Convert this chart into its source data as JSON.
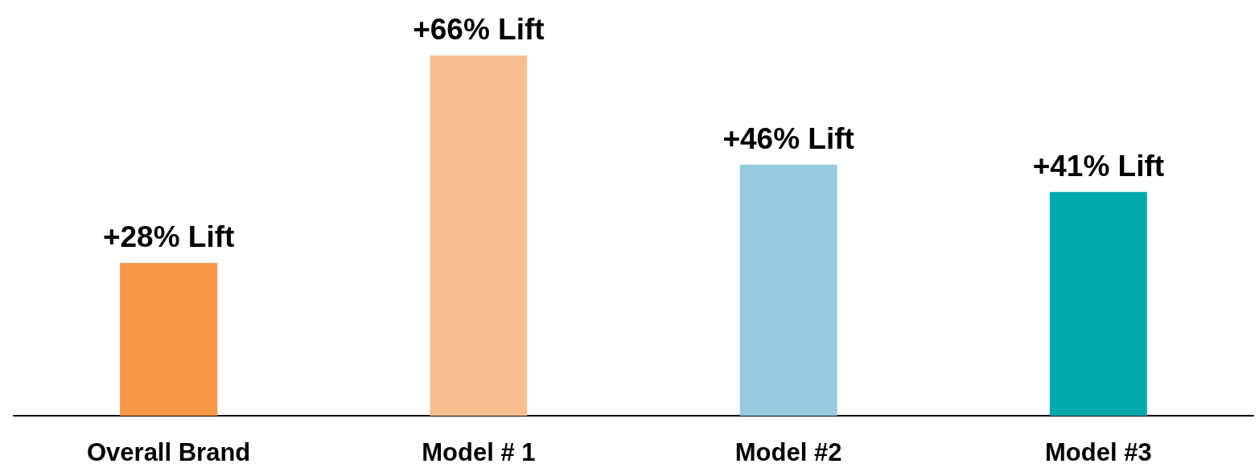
{
  "chart_data": {
    "type": "bar",
    "categories": [
      "Overall Brand",
      "Model # 1",
      "Model #2",
      "Model #3"
    ],
    "values": [
      28,
      66,
      46,
      41
    ],
    "value_labels": [
      "+28% Lift",
      "+66% Lift",
      "+46% Lift",
      "+41% Lift"
    ],
    "colors": [
      "#f79748",
      "#f9c08f",
      "#95cbdd",
      "#00a9ac"
    ]
  }
}
